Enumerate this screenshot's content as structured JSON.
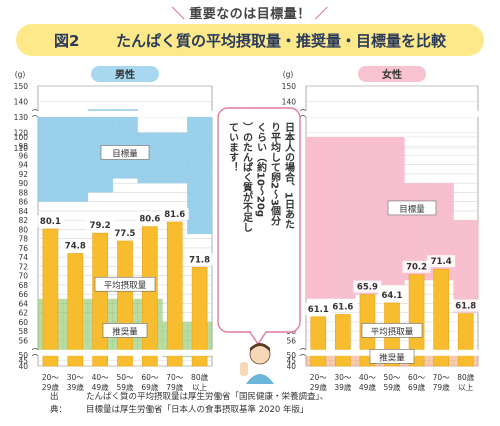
{
  "kicker": "重要なのは目標量！",
  "figure": {
    "number": "図2",
    "title": "たんぱく質の平均摂取量・推奨量・目標量を比較"
  },
  "unit": "(g)",
  "note": "日本人の場合、1日あたり平均して卵2〜3個分くらい（約10〜20g）のたんぱく質が不足しています！",
  "source": {
    "label": "出典：",
    "lines": [
      "たんぱく質の平均摂取量は厚生労働省「国民健康・栄養調査」、",
      "目標量は厚生労働省「日本人の食事摂取基準 2020 年版」"
    ]
  },
  "colors": {
    "intake_bar": "#f7bd2e",
    "male_target": "#8fcbe8",
    "female_target": "#f7b9c9",
    "male_recommended": "#7fbf5a",
    "female_recommended": "#f0a070",
    "title_band": "#fde98a"
  },
  "labels": {
    "target": "目標量",
    "intake": "平均摂取量",
    "recommended": "推奨量"
  },
  "chart_data": [
    {
      "type": "bar",
      "title": "男性",
      "categories": [
        [
          "20〜",
          "29歳"
        ],
        [
          "30〜",
          "39歳"
        ],
        [
          "40〜",
          "49歳"
        ],
        [
          "50〜",
          "59歳"
        ],
        [
          "60〜",
          "69歳"
        ],
        [
          "70〜",
          "79歳"
        ],
        [
          "80歳",
          "以上"
        ]
      ],
      "series": [
        {
          "name": "平均摂取量",
          "values": [
            80.1,
            74.8,
            79.2,
            77.5,
            80.6,
            81.6,
            71.8
          ]
        },
        {
          "name": "目標量",
          "ranges": [
            [
              86,
              130
            ],
            [
              86,
              130
            ],
            [
              88,
              135
            ],
            [
              91,
              135
            ],
            [
              90,
              120
            ],
            [
              90,
              120
            ],
            [
              79,
              105
            ]
          ]
        },
        {
          "name": "推奨量",
          "values": [
            65,
            65,
            65,
            65,
            65,
            60,
            60
          ]
        }
      ],
      "y_ticks_lower": [
        40,
        45,
        50
      ],
      "y_ticks_upper": [
        56,
        58,
        60,
        62,
        64,
        66,
        68,
        70,
        72,
        74,
        76,
        78,
        80,
        82,
        84,
        86,
        88,
        90,
        92,
        94,
        96,
        98,
        100
      ],
      "y_ticks_top": [
        110,
        120,
        130,
        140,
        150
      ],
      "ylim": [
        40,
        150
      ],
      "grid": true
    },
    {
      "type": "bar",
      "title": "女性",
      "categories": [
        [
          "20〜",
          "29歳"
        ],
        [
          "30〜",
          "39歳"
        ],
        [
          "40〜",
          "49歳"
        ],
        [
          "50〜",
          "59歳"
        ],
        [
          "60〜",
          "69歳"
        ],
        [
          "70〜",
          "79歳"
        ],
        [
          "80歳",
          "以上"
        ]
      ],
      "series": [
        {
          "name": "平均摂取量",
          "values": [
            61.1,
            61.6,
            65.9,
            64.1,
            70.2,
            71.4,
            61.8
          ]
        },
        {
          "name": "目標量",
          "ranges": [
            [
              65,
              100
            ],
            [
              65,
              100
            ],
            [
              66,
              100
            ],
            [
              68,
              100
            ],
            [
              69,
              90
            ],
            [
              69,
              90
            ],
            [
              62,
              82
            ]
          ]
        },
        {
          "name": "推奨量",
          "values": [
            50,
            50,
            50,
            50,
            50,
            50,
            50
          ]
        }
      ],
      "y_ticks_lower": [
        40,
        45,
        50
      ],
      "y_ticks_upper": [
        56,
        58,
        60,
        62,
        64,
        66,
        68,
        70,
        72,
        74,
        76,
        78,
        80,
        82,
        84,
        86,
        88,
        90,
        92,
        94,
        96,
        98,
        100
      ],
      "y_ticks_top": [
        110,
        120,
        130,
        140,
        150
      ],
      "ylim": [
        40,
        150
      ],
      "grid": true
    }
  ]
}
